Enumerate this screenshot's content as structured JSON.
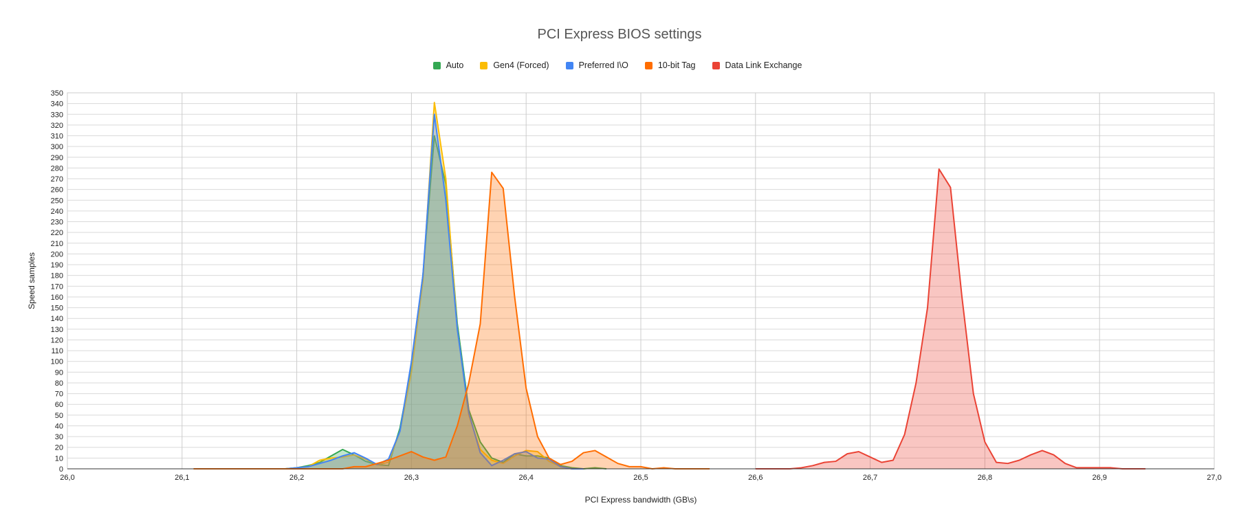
{
  "chart_data": {
    "type": "area",
    "title": "PCI Express BIOS settings",
    "xlabel": "PCI Express bandwidth (GB\\s)",
    "ylabel": "Speed samples",
    "xlim": [
      26.0,
      27.0
    ],
    "ylim": [
      0,
      350
    ],
    "x_tick_labels": [
      "26,0",
      "26,1",
      "26,2",
      "26,3",
      "26,4",
      "26,5",
      "26,6",
      "26,7",
      "26,8",
      "26,9",
      "27,0"
    ],
    "x_tick_values": [
      26.0,
      26.1,
      26.2,
      26.3,
      26.4,
      26.5,
      26.6,
      26.7,
      26.8,
      26.9,
      27.0
    ],
    "y_tick_step": 10,
    "grid": true,
    "legend_position": "top",
    "series": [
      {
        "name": "Auto",
        "color": "#34a853",
        "fill_opacity": 0.3,
        "x": [
          26.19,
          26.2,
          26.21,
          26.22,
          26.23,
          26.24,
          26.25,
          26.26,
          26.27,
          26.28,
          26.29,
          26.3,
          26.31,
          26.32,
          26.33,
          26.34,
          26.35,
          26.36,
          26.37,
          26.38,
          26.39,
          26.4,
          26.41,
          26.42,
          26.43,
          26.44,
          26.45,
          26.46,
          26.47
        ],
        "y": [
          0,
          1,
          3,
          6,
          12,
          18,
          13,
          7,
          4,
          3,
          38,
          95,
          180,
          310,
          265,
          135,
          55,
          25,
          10,
          6,
          14,
          12,
          12,
          10,
          3,
          1,
          0,
          1,
          0
        ]
      },
      {
        "name": "Gen4 (Forced)",
        "color": "#fbbc04",
        "fill_opacity": 0.3,
        "x": [
          26.17,
          26.18,
          26.19,
          26.2,
          26.21,
          26.22,
          26.23,
          26.24,
          26.25,
          26.26,
          26.27,
          26.28,
          26.29,
          26.3,
          26.31,
          26.32,
          26.33,
          26.34,
          26.35,
          26.36,
          26.37,
          26.38,
          26.39,
          26.4,
          26.41,
          26.42,
          26.43,
          26.44,
          26.45
        ],
        "y": [
          0,
          0,
          0,
          1,
          2,
          8,
          10,
          11,
          13,
          9,
          4,
          6,
          35,
          90,
          175,
          341,
          270,
          130,
          50,
          18,
          8,
          5,
          12,
          17,
          16,
          7,
          2,
          0,
          0
        ]
      },
      {
        "name": "Preferred I\\O",
        "color": "#4285f4",
        "fill_opacity": 0.3,
        "x": [
          26.19,
          26.2,
          26.21,
          26.22,
          26.23,
          26.24,
          26.25,
          26.26,
          26.27,
          26.28,
          26.29,
          26.3,
          26.31,
          26.32,
          26.33,
          26.34,
          26.35,
          26.36,
          26.37,
          26.38,
          26.39,
          26.4,
          26.41,
          26.42,
          26.43,
          26.44,
          26.45
        ],
        "y": [
          0,
          1,
          2,
          5,
          8,
          12,
          15,
          10,
          4,
          9,
          35,
          100,
          180,
          330,
          250,
          130,
          52,
          15,
          3,
          8,
          14,
          16,
          10,
          9,
          2,
          0,
          0
        ]
      },
      {
        "name": "10-bit Tag",
        "color": "#ff6d01",
        "fill_opacity": 0.3,
        "x": [
          26.11,
          26.12,
          26.13,
          26.14,
          26.15,
          26.16,
          26.17,
          26.18,
          26.19,
          26.2,
          26.21,
          26.22,
          26.23,
          26.24,
          26.25,
          26.26,
          26.27,
          26.28,
          26.29,
          26.3,
          26.31,
          26.32,
          26.33,
          26.34,
          26.35,
          26.36,
          26.37,
          26.38,
          26.39,
          26.4,
          26.41,
          26.42,
          26.43,
          26.44,
          26.45,
          26.46,
          26.47,
          26.48,
          26.49,
          26.5,
          26.51,
          26.52,
          26.53,
          26.54,
          26.55,
          26.56
        ],
        "y": [
          0,
          0,
          0,
          0,
          0,
          0,
          0,
          0,
          0,
          0,
          0,
          0,
          0,
          0,
          2,
          2,
          5,
          8,
          12,
          16,
          11,
          8,
          11,
          40,
          80,
          135,
          276,
          261,
          160,
          75,
          30,
          10,
          4,
          7,
          15,
          17,
          11,
          5,
          2,
          2,
          0,
          1,
          0,
          0,
          0,
          0
        ]
      },
      {
        "name": "Data Link Exchange",
        "color": "#ea4335",
        "fill_opacity": 0.3,
        "x": [
          26.6,
          26.61,
          26.62,
          26.63,
          26.64,
          26.65,
          26.66,
          26.67,
          26.68,
          26.69,
          26.7,
          26.71,
          26.72,
          26.73,
          26.74,
          26.75,
          26.76,
          26.77,
          26.78,
          26.79,
          26.8,
          26.81,
          26.82,
          26.83,
          26.84,
          26.85,
          26.86,
          26.87,
          26.88,
          26.89,
          26.9,
          26.91,
          26.92,
          26.93,
          26.94
        ],
        "y": [
          0,
          0,
          0,
          0,
          1,
          3,
          6,
          7,
          14,
          16,
          11,
          6,
          8,
          32,
          80,
          150,
          279,
          262,
          160,
          70,
          25,
          6,
          5,
          8,
          13,
          17,
          13,
          5,
          1,
          1,
          1,
          1,
          0,
          0,
          0
        ]
      }
    ]
  }
}
